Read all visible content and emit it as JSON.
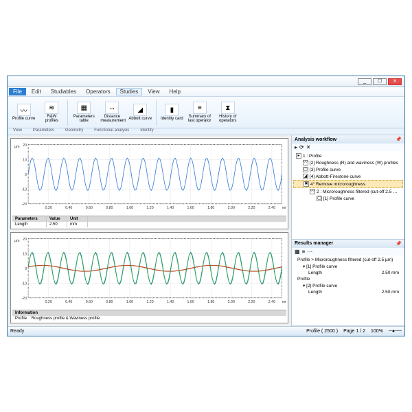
{
  "window": {
    "controls": {
      "min": "_",
      "max": "☐",
      "close": "✕"
    }
  },
  "menu": {
    "file": "File",
    "items": [
      "Edit",
      "Studiables",
      "Operators",
      "Studies",
      "View",
      "Help"
    ],
    "activeIndex": 3
  },
  "ribbon": {
    "groups": [
      {
        "icon": "〰",
        "label": "Profile curve"
      },
      {
        "icon": "≋",
        "label": "R&W profiles"
      },
      {
        "icon": "▦",
        "label": "Parameters table"
      },
      {
        "icon": "↔",
        "label": "Distance measurement"
      },
      {
        "icon": "◢",
        "label": "Abbott curve"
      },
      {
        "icon": "▮",
        "label": "Identity card"
      },
      {
        "icon": "≡",
        "label": "Summary of last operator"
      },
      {
        "icon": "⧗",
        "label": "History of operators"
      }
    ],
    "sections": [
      "View",
      "Parameters",
      "Geometry",
      "Functional analysis",
      "Identity"
    ]
  },
  "chart1": {
    "ylabel": "µm",
    "ylim": [
      -20,
      20
    ],
    "yticks": [
      -20,
      -10,
      0,
      10,
      20
    ],
    "xlim": [
      0,
      2.5
    ],
    "xticks": [
      0.2,
      0.4,
      0.6,
      0.8,
      1.0,
      1.2,
      1.4,
      1.6,
      1.8,
      2.0,
      2.2,
      2.4
    ],
    "xunit": "mm",
    "series": [
      {
        "color": "#3a7bd5",
        "amplitude": 11,
        "frequency": 16,
        "width": 0.8
      }
    ],
    "grid_color": "#e6e6e6",
    "axis_color": "#000000",
    "background": "#ffffff",
    "params": {
      "title": "Parameters",
      "cols": [
        "Value",
        "Unit"
      ],
      "rows": [
        [
          "Length",
          "2.50",
          "mm"
        ]
      ]
    }
  },
  "chart2": {
    "ylabel": "µm",
    "ylim": [
      -20,
      20
    ],
    "yticks": [
      -20,
      -10,
      0,
      10,
      20
    ],
    "xlim": [
      0,
      2.5
    ],
    "xticks": [
      0.2,
      0.4,
      0.6,
      0.8,
      1.0,
      1.2,
      1.4,
      1.6,
      1.8,
      2.0,
      2.2,
      2.4
    ],
    "xunit": "mm",
    "series": [
      {
        "color": "#3a7bd5",
        "amplitude": 11,
        "frequency": 16,
        "width": 0.7
      },
      {
        "color": "#2aa84a",
        "amplitude": 10.5,
        "frequency": 16,
        "width": 0.9,
        "phase": 0.1
      },
      {
        "color": "#b05028",
        "amplitude": 2,
        "frequency": 3,
        "width": 1.2,
        "phase": 0.5
      }
    ],
    "grid_color": "#e6e6e6",
    "axis_color": "#000000",
    "background": "#ffffff",
    "info": {
      "title": "Information",
      "rows": [
        [
          "Profile",
          "Roughness profile & Waviness profile"
        ]
      ]
    }
  },
  "workflow": {
    "title": "Analysis workflow",
    "toolbar": [
      "▸",
      "⟳",
      "✕"
    ],
    "nodes": [
      {
        "lv": 1,
        "icon": "▸",
        "label": "1 : Profile"
      },
      {
        "lv": 2,
        "icon": "〰",
        "label": "[2] Roughness (R) and waviness (W) profiles"
      },
      {
        "lv": 2,
        "icon": "▢",
        "label": "[3] Profile curve"
      },
      {
        "lv": 2,
        "icon": "◢",
        "label": "[4] Abbott-Firestone curve"
      },
      {
        "lv": 2,
        "icon": "✖",
        "label": "4° Remove microroughness",
        "sel": true
      },
      {
        "lv": 3,
        "icon": "〰",
        "label": "2 : Microroughness filtered (cut-off 2.5 …"
      },
      {
        "lv": 4,
        "icon": "▢",
        "label": "[1] Profile curve"
      }
    ]
  },
  "results": {
    "title": "Results manager",
    "toolbar": [
      "▦",
      "≡",
      "⋯"
    ],
    "items": [
      {
        "lv": 1,
        "label": "Profile > Microroughness filtered (cut-off 2.5 µm)"
      },
      {
        "lv": 2,
        "label": "▾ [1] Profile curve"
      },
      {
        "lv": 3,
        "label": "Length",
        "value": "2.50 mm"
      },
      {
        "lv": 1,
        "label": "Profile"
      },
      {
        "lv": 2,
        "label": "▾ [2] Profile curve"
      },
      {
        "lv": 3,
        "label": "Length",
        "value": "2.50 mm"
      }
    ]
  },
  "status": {
    "ready": "Ready",
    "profile": "Profile ( 2500 )",
    "page": "Page 1 / 2",
    "zoom": "100%"
  }
}
